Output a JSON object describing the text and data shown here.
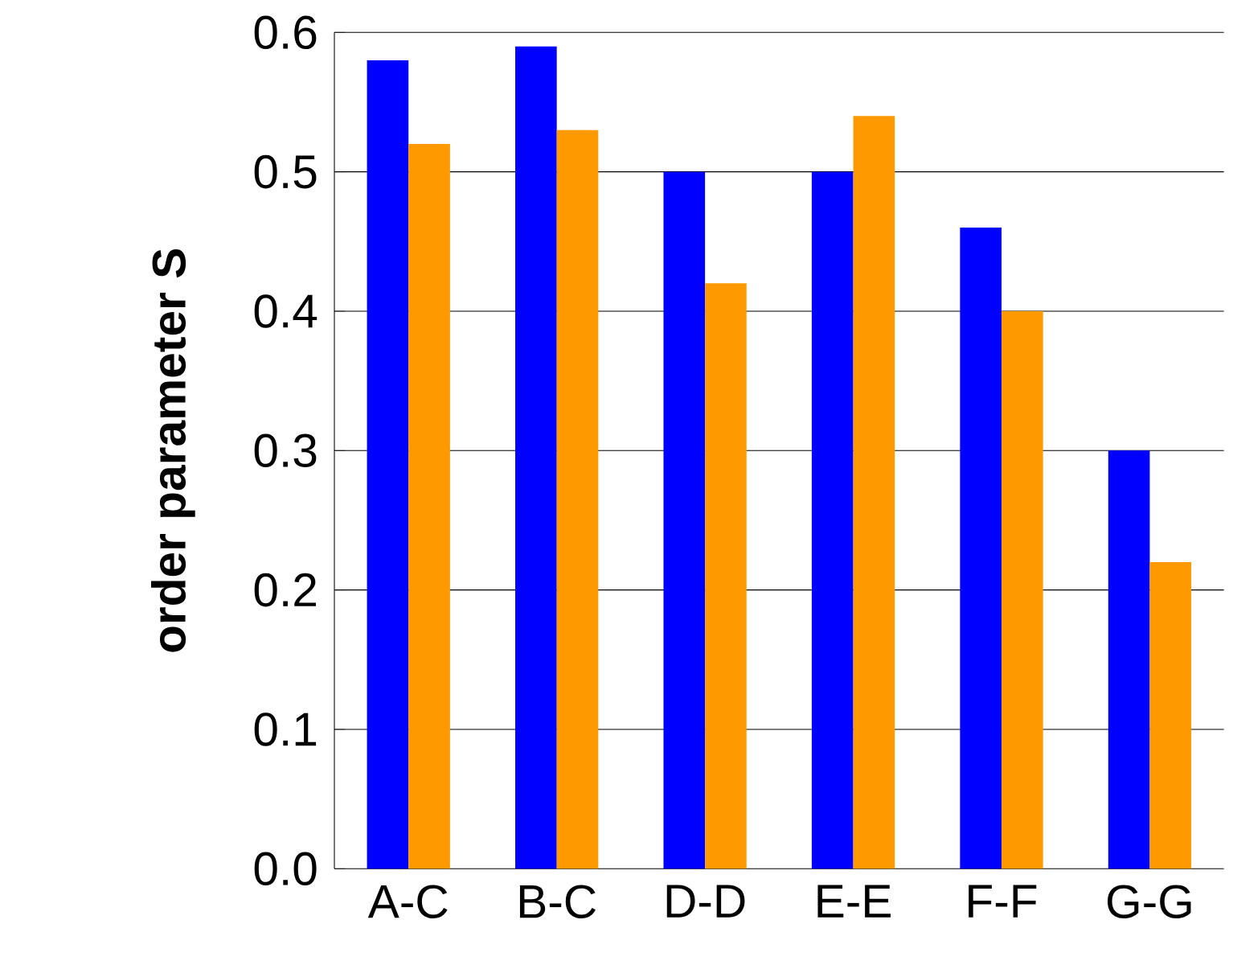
{
  "chart_data": {
    "type": "bar",
    "ylabel": "order parameter S",
    "categories": [
      "A-C",
      "B-C",
      "D-D",
      "E-E",
      "F-F",
      "G-G"
    ],
    "series": [
      {
        "color": "#0000ff",
        "values": [
          0.58,
          0.59,
          0.5,
          0.5,
          0.46,
          0.3
        ]
      },
      {
        "color": "#ff9900",
        "values": [
          0.52,
          0.53,
          0.42,
          0.54,
          0.4,
          0.22
        ]
      }
    ],
    "ylim": [
      0,
      0.6
    ],
    "yticks": [
      {
        "value": 0,
        "label": "0.0"
      },
      0.1,
      0.2,
      0.3,
      0.4,
      0.5,
      0.6
    ],
    "grid": "y"
  }
}
